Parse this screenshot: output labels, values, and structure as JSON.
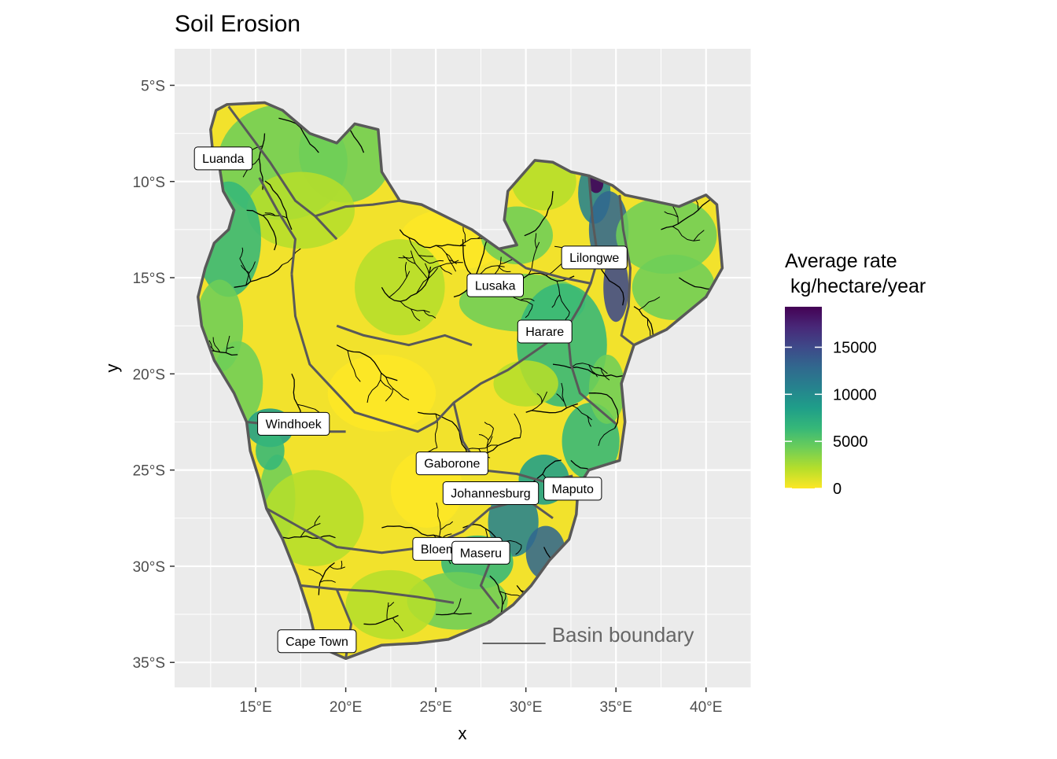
{
  "title": "Soil Erosion",
  "x_axis_title": "x",
  "y_axis_title": "y",
  "x_ticks": [
    {
      "value": 15,
      "label": "15°E"
    },
    {
      "value": 20,
      "label": "20°E"
    },
    {
      "value": 25,
      "label": "25°E"
    },
    {
      "value": 30,
      "label": "30°E"
    },
    {
      "value": 35,
      "label": "35°E"
    },
    {
      "value": 40,
      "label": "40°E"
    }
  ],
  "y_ticks": [
    {
      "value": -5,
      "label": "5°S"
    },
    {
      "value": -10,
      "label": "10°S"
    },
    {
      "value": -15,
      "label": "15°S"
    },
    {
      "value": -20,
      "label": "20°S"
    },
    {
      "value": -25,
      "label": "25°S"
    },
    {
      "value": -30,
      "label": "30°S"
    },
    {
      "value": -35,
      "label": "35°S"
    }
  ],
  "x_range": [
    10.5,
    42.5
  ],
  "y_range": [
    -36.3,
    -3.1
  ],
  "legend": {
    "title_line1": "Average rate",
    "title_line2": " kg/hectare/year",
    "breaks": [
      {
        "value": 0,
        "label": "0"
      },
      {
        "value": 5000,
        "label": "5000"
      },
      {
        "value": 10000,
        "label": "10000"
      },
      {
        "value": 15000,
        "label": "15000"
      }
    ],
    "min": 0,
    "max": 19300,
    "colors": [
      "#fde725",
      "#b5de2b",
      "#6ece58",
      "#35b779",
      "#1f9e89",
      "#26828e",
      "#31688e",
      "#3e4989",
      "#482878",
      "#440154"
    ]
  },
  "annotation": {
    "label": "Basin boundary",
    "lon": 27.6,
    "lat": -33.6
  },
  "cities": [
    {
      "name": "Luanda",
      "lon": 13.2,
      "lat": -8.8
    },
    {
      "name": "Lilongwe",
      "lon": 33.8,
      "lat": -13.95
    },
    {
      "name": "Lusaka",
      "lon": 28.3,
      "lat": -15.4
    },
    {
      "name": "Harare",
      "lon": 31.05,
      "lat": -17.8
    },
    {
      "name": "Windhoek",
      "lon": 17.1,
      "lat": -22.6
    },
    {
      "name": "Gaborone",
      "lon": 25.9,
      "lat": -24.65
    },
    {
      "name": "Johannesburg",
      "lon": 28.05,
      "lat": -26.2
    },
    {
      "name": "Maputo",
      "lon": 32.6,
      "lat": -25.97
    },
    {
      "name": "Bloemfontein",
      "lon": 26.2,
      "lat": -29.1
    },
    {
      "name": "Maseru",
      "lon": 27.5,
      "lat": -29.3
    },
    {
      "name": "Cape Town",
      "lon": 18.4,
      "lat": -33.9
    }
  ],
  "colors": {
    "panel": "#ebebeb",
    "grid": "#ffffff",
    "boundary": "#595959",
    "river": "#000000"
  }
}
